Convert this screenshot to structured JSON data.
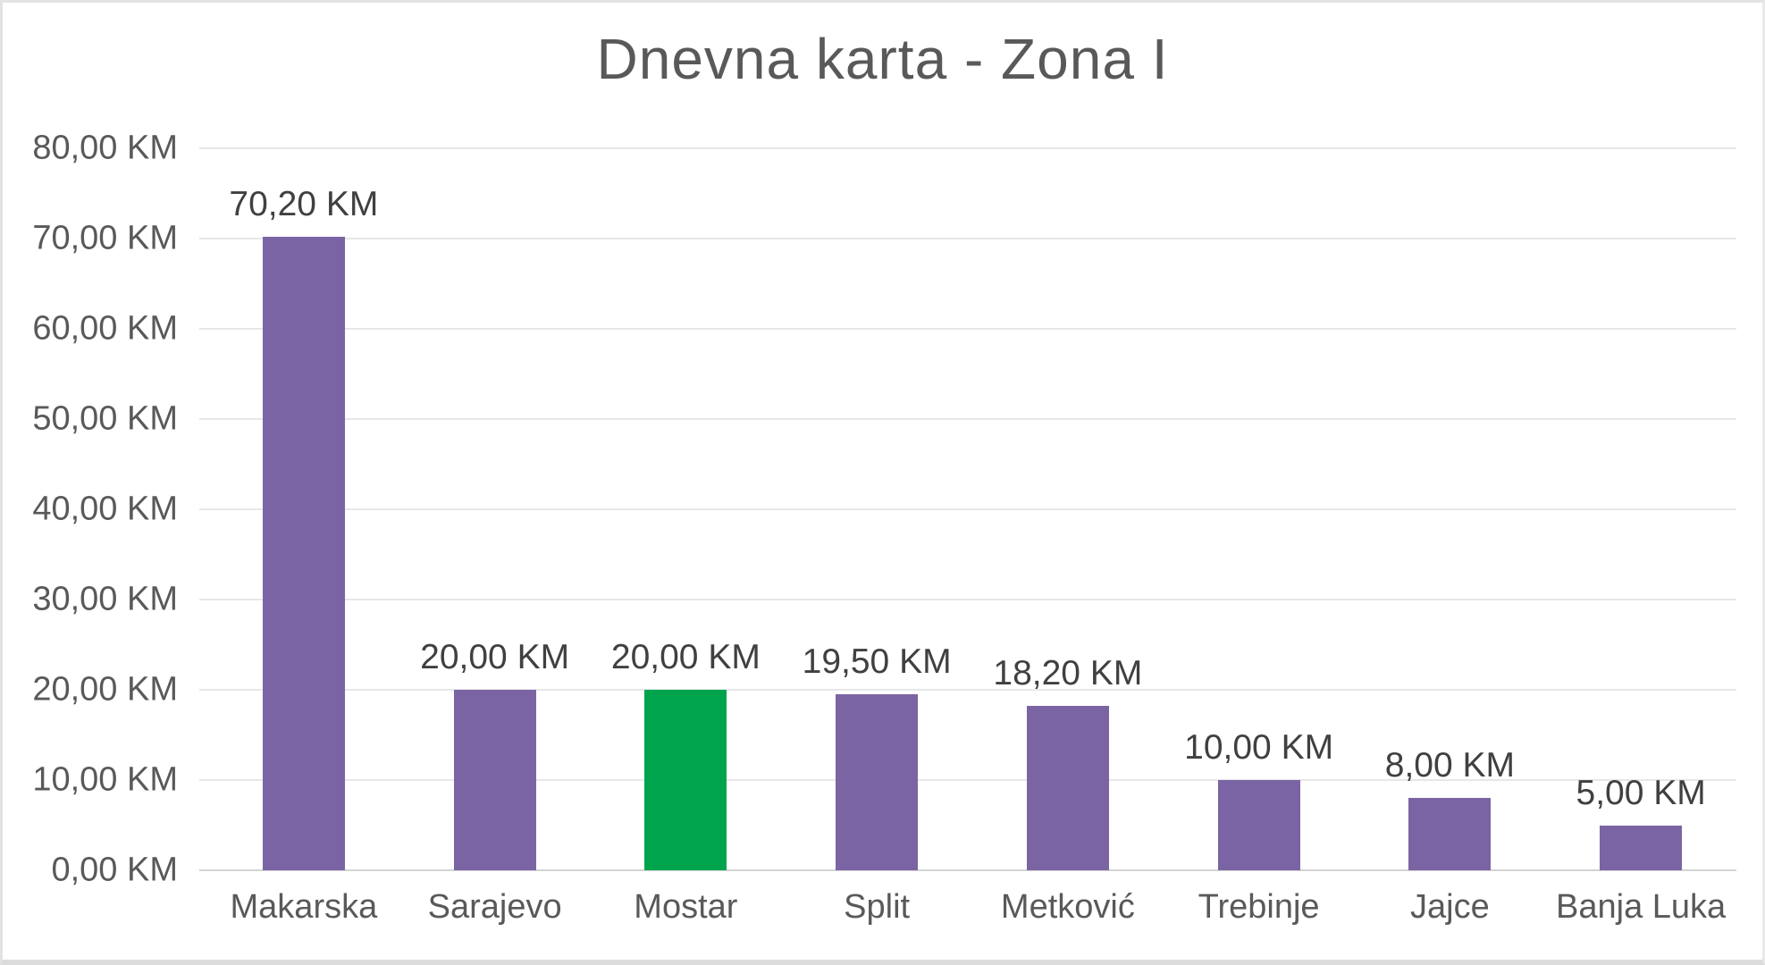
{
  "chart_data": {
    "type": "bar",
    "title": "Dnevna karta - Zona I",
    "categories": [
      "Makarska",
      "Sarajevo",
      "Mostar",
      "Split",
      "Metković",
      "Trebinje",
      "Jajce",
      "Banja Luka"
    ],
    "values": [
      70.2,
      20.0,
      20.0,
      19.5,
      18.2,
      10.0,
      8.0,
      5.0
    ],
    "data_labels": [
      "70,20 KM",
      "20,00 KM",
      "20,00 KM",
      "19,50 KM",
      "18,20 KM",
      "10,00 KM",
      "8,00 KM",
      "5,00 KM"
    ],
    "y_tick_values": [
      0,
      10,
      20,
      30,
      40,
      50,
      60,
      70,
      80
    ],
    "y_tick_labels": [
      "0,00 KM",
      "10,00 KM",
      "20,00 KM",
      "30,00 KM",
      "40,00 KM",
      "50,00 KM",
      "60,00 KM",
      "70,00 KM",
      "80,00 KM"
    ],
    "ylim": [
      0,
      80
    ],
    "xlabel": "",
    "ylabel": "",
    "grid": true,
    "legend": false,
    "colors": {
      "bar_default": "#7b64a3",
      "bar_highlight": "#00a44d",
      "highlight_index": 2,
      "title_text": "#595959",
      "tick_text": "#595959",
      "data_label_text": "#404040",
      "gridline": "#e7e7e7",
      "axis_line": "#d4d4d4",
      "background": "#ffffff"
    }
  }
}
